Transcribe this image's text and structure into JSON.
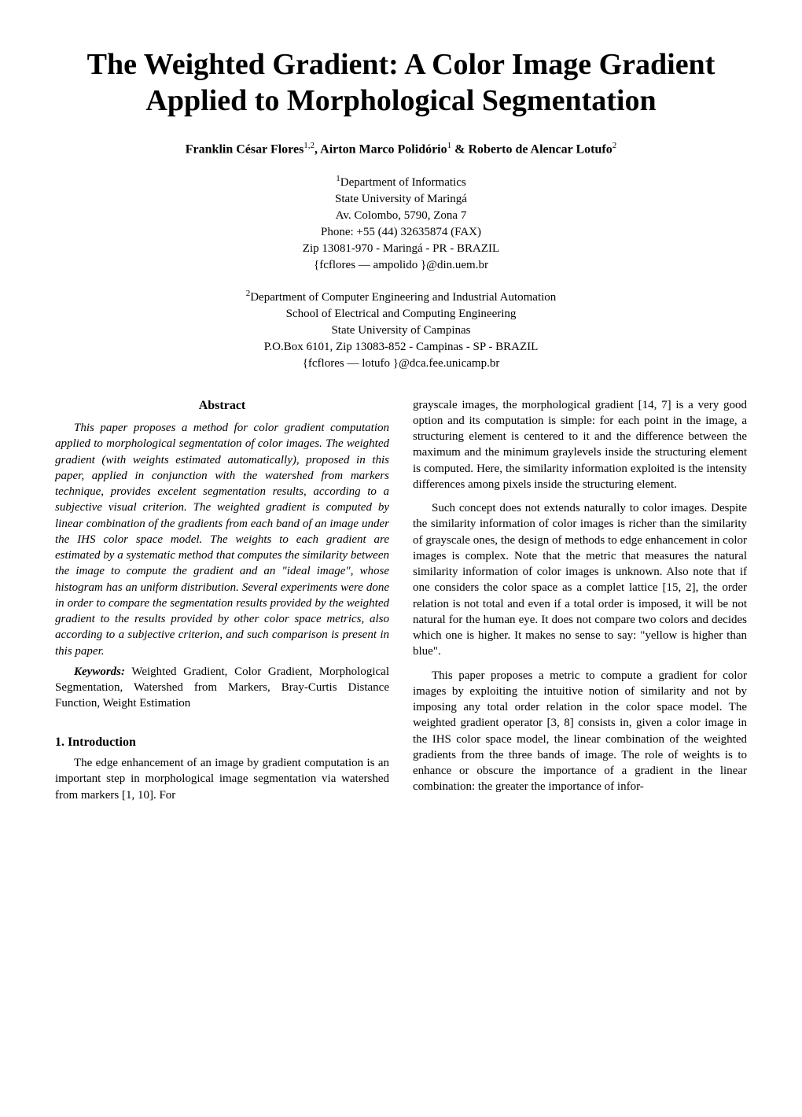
{
  "title": "The Weighted Gradient: A Color Image Gradient Applied to Morphological Segmentation",
  "authors_html": "Franklin César Flores<span class='sup'>1,2</span>, Airton Marco Polidório<span class='sup'>1</span> & Roberto de Alencar Lotufo<span class='sup'>2</span>",
  "affiliation1": {
    "sup": "1",
    "lines": [
      "Department of Informatics",
      "State University of Maringá",
      "Av. Colombo, 5790, Zona 7",
      "Phone: +55 (44) 32635874 (FAX)",
      "Zip 13081-970 - Maringá - PR - BRAZIL",
      "{fcflores — ampolido }@din.uem.br"
    ]
  },
  "affiliation2": {
    "sup": "2",
    "lines": [
      "Department of Computer Engineering and Industrial Automation",
      "School of Electrical and Computing Engineering",
      "State University of Campinas",
      "P.O.Box 6101, Zip 13083-852 - Campinas - SP - BRAZIL",
      "{fcflores — lotufo }@dca.fee.unicamp.br"
    ]
  },
  "abstract": {
    "heading": "Abstract",
    "body": "This paper proposes a method for color gradient computation applied to morphological segmentation of color images. The weighted gradient (with weights estimated automatically), proposed in this paper, applied in conjunction with the watershed from markers technique, provides excelent segmentation results, according to a subjective visual criterion. The weighted gradient is computed by linear combination of the gradients from each band of an image under the IHS color space model. The weights to each gradient are estimated by a systematic method that computes the similarity between the image to compute the gradient and an \"ideal image\", whose histogram has an uniform distribution. Several experiments were done in order to compare the segmentation results provided by the weighted gradient to the results provided by other color space metrics, also according to a subjective criterion, and such comparison is present in this paper.",
    "keywords_label": "Keywords:",
    "keywords": " Weighted Gradient, Color Gradient, Morphological Segmentation, Watershed from Markers, Bray-Curtis Distance Function, Weight Estimation"
  },
  "section1": {
    "heading": "1. Introduction",
    "para1": "The edge enhancement of an image by gradient computation is an important step in morphological image segmentation via watershed from markers [1, 10]. For"
  },
  "rightcol": {
    "para1": "grayscale images, the morphological gradient [14, 7] is a very good option and its computation is simple: for each point in the image, a structuring element is centered to it and the difference between the maximum and the minimum graylevels inside the structuring element is computed. Here, the similarity information exploited is the intensity differences among pixels inside the structuring element.",
    "para2": "Such concept does not extends naturally to color images. Despite the similarity information of color images is richer than the similarity of grayscale ones, the design of methods to edge enhancement in color images is complex. Note that the metric that measures the natural similarity information of color images is unknown. Also note that if one considers the color space as a complet lattice [15, 2], the order relation is not total and even if a total order is imposed, it will be not natural for the human eye. It does not compare two colors and decides which one is higher. It makes no sense to say: \"yellow is higher than blue\".",
    "para3": "This paper proposes a metric to compute a gradient for color images by exploiting the intuitive notion of similarity and not by imposing any total order relation in the color space model. The weighted gradient operator [3, 8] consists in, given a color image in the IHS color space model, the linear combination of the weighted gradients from the three bands of image. The role of weights is to enhance or obscure the importance of a gradient in the linear combination: the greater the importance of infor-"
  }
}
